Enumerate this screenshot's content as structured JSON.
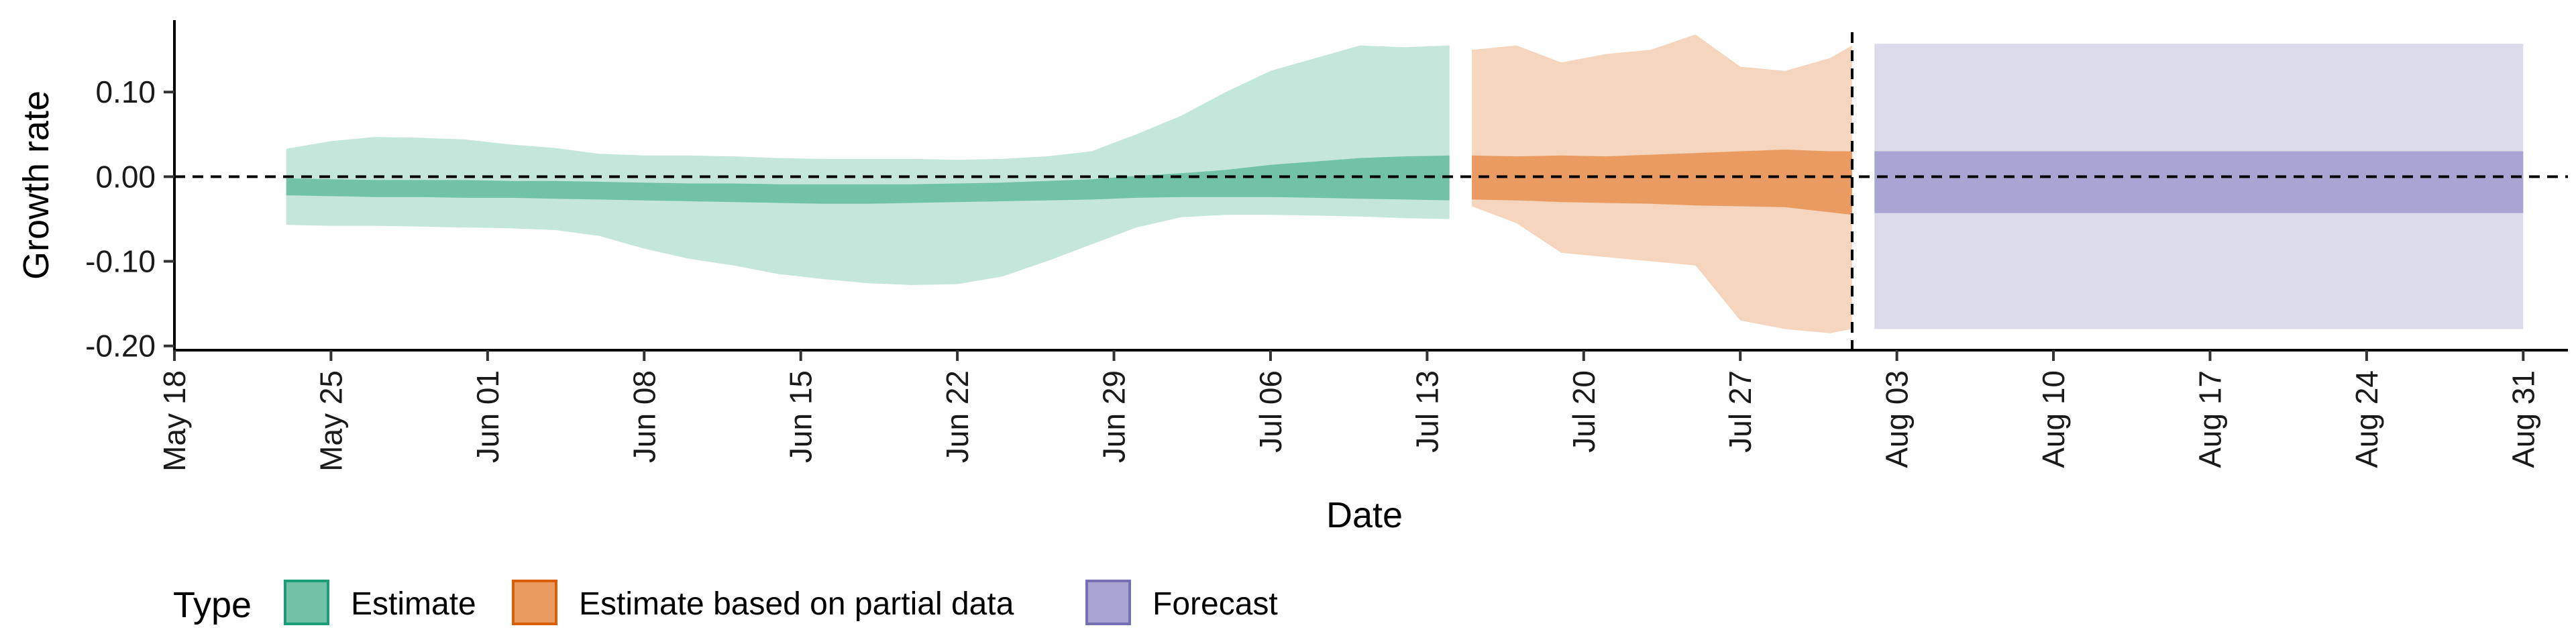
{
  "chart_data": {
    "type": "area",
    "xlabel": "Date",
    "ylabel": "Growth rate",
    "x_axis_type": "date",
    "xlim": [
      "2020-05-18",
      "2020-09-02"
    ],
    "ylim": [
      -0.205,
      0.185
    ],
    "y_ticks": [
      0.1,
      0.0,
      -0.1,
      -0.2
    ],
    "y_tick_labels": [
      "0.10",
      "0.00",
      "-0.10",
      "-0.20"
    ],
    "x_ticks": [
      "2020-05-18",
      "2020-05-25",
      "2020-06-01",
      "2020-06-08",
      "2020-06-15",
      "2020-06-22",
      "2020-06-29",
      "2020-07-06",
      "2020-07-13",
      "2020-07-20",
      "2020-07-27",
      "2020-08-03",
      "2020-08-10",
      "2020-08-17",
      "2020-08-24",
      "2020-08-31"
    ],
    "x_tick_labels": [
      "May 18",
      "May 25",
      "Jun 01",
      "Jun 08",
      "Jun 15",
      "Jun 22",
      "Jun 29",
      "Jul 06",
      "Jul 13",
      "Jul 20",
      "Jul 27",
      "Aug 03",
      "Aug 10",
      "Aug 17",
      "Aug 24",
      "Aug 31"
    ],
    "reference_lines": {
      "horizontal_dashed_y": 0.0,
      "vertical_dashed_date": "2020-08-01"
    },
    "legend": {
      "title": "Type",
      "position": "bottom",
      "entries": [
        {
          "label": "Estimate",
          "fill": "#71c2a6",
          "stroke": "#1b9e77"
        },
        {
          "label": "Estimate based on partial data",
          "fill": "#e99b61",
          "stroke": "#d95f02"
        },
        {
          "label": "Forecast",
          "fill": "#a9a5d2",
          "stroke": "#7570b3"
        }
      ]
    },
    "series": [
      {
        "name": "Estimate",
        "colors": {
          "outer": "#c5e6da",
          "inner": "#71c2a6"
        },
        "dates": [
          "2020-05-23",
          "2020-05-25",
          "2020-05-27",
          "2020-05-29",
          "2020-05-31",
          "2020-06-02",
          "2020-06-04",
          "2020-06-06",
          "2020-06-08",
          "2020-06-10",
          "2020-06-12",
          "2020-06-14",
          "2020-06-16",
          "2020-06-18",
          "2020-06-20",
          "2020-06-22",
          "2020-06-24",
          "2020-06-26",
          "2020-06-28",
          "2020-06-30",
          "2020-07-02",
          "2020-07-04",
          "2020-07-06",
          "2020-07-08",
          "2020-07-10",
          "2020-07-12",
          "2020-07-14"
        ],
        "outer_upper": [
          0.033,
          0.042,
          0.047,
          0.046,
          0.044,
          0.038,
          0.034,
          0.027,
          0.025,
          0.025,
          0.024,
          0.022,
          0.021,
          0.021,
          0.021,
          0.02,
          0.021,
          0.024,
          0.03,
          0.05,
          0.072,
          0.1,
          0.125,
          0.14,
          0.155,
          0.153,
          0.155
        ],
        "inner_upper": [
          -0.002,
          -0.003,
          -0.004,
          -0.004,
          -0.004,
          -0.005,
          -0.005,
          -0.006,
          -0.007,
          -0.008,
          -0.008,
          -0.009,
          -0.009,
          -0.009,
          -0.009,
          -0.008,
          -0.007,
          -0.005,
          -0.003,
          0.001,
          0.004,
          0.008,
          0.014,
          0.018,
          0.022,
          0.024,
          0.025
        ],
        "inner_lower": [
          -0.022,
          -0.023,
          -0.024,
          -0.024,
          -0.025,
          -0.025,
          -0.026,
          -0.027,
          -0.028,
          -0.029,
          -0.03,
          -0.031,
          -0.032,
          -0.032,
          -0.031,
          -0.03,
          -0.029,
          -0.028,
          -0.027,
          -0.025,
          -0.024,
          -0.024,
          -0.024,
          -0.025,
          -0.026,
          -0.027,
          -0.028
        ],
        "outer_lower": [
          -0.057,
          -0.058,
          -0.058,
          -0.059,
          -0.06,
          -0.061,
          -0.063,
          -0.07,
          -0.085,
          -0.097,
          -0.105,
          -0.115,
          -0.121,
          -0.126,
          -0.128,
          -0.127,
          -0.118,
          -0.1,
          -0.08,
          -0.06,
          -0.048,
          -0.045,
          -0.045,
          -0.046,
          -0.047,
          -0.049,
          -0.05
        ]
      },
      {
        "name": "Estimate based on partial data",
        "colors": {
          "outer": "#f5d5bd",
          "inner": "#e99b61"
        },
        "dates": [
          "2020-07-15",
          "2020-07-17",
          "2020-07-19",
          "2020-07-21",
          "2020-07-23",
          "2020-07-25",
          "2020-07-27",
          "2020-07-29",
          "2020-07-31",
          "2020-08-01"
        ],
        "outer_upper": [
          0.15,
          0.155,
          0.135,
          0.145,
          0.15,
          0.168,
          0.13,
          0.125,
          0.14,
          0.155
        ],
        "inner_upper": [
          0.025,
          0.024,
          0.025,
          0.024,
          0.026,
          0.028,
          0.03,
          0.032,
          0.03,
          0.03
        ],
        "inner_lower": [
          -0.027,
          -0.028,
          -0.03,
          -0.031,
          -0.032,
          -0.034,
          -0.035,
          -0.036,
          -0.042,
          -0.045
        ],
        "outer_lower": [
          -0.035,
          -0.055,
          -0.09,
          -0.095,
          -0.1,
          -0.105,
          -0.17,
          -0.18,
          -0.185,
          -0.18
        ]
      },
      {
        "name": "Forecast",
        "colors": {
          "outer": "#dcdbec",
          "inner": "#a9a5d2"
        },
        "dates": [
          "2020-08-02",
          "2020-08-31"
        ],
        "outer_upper": [
          0.157,
          0.157
        ],
        "inner_upper": [
          0.03,
          0.03
        ],
        "inner_lower": [
          -0.043,
          -0.043
        ],
        "outer_lower": [
          -0.18,
          -0.18
        ]
      }
    ]
  }
}
